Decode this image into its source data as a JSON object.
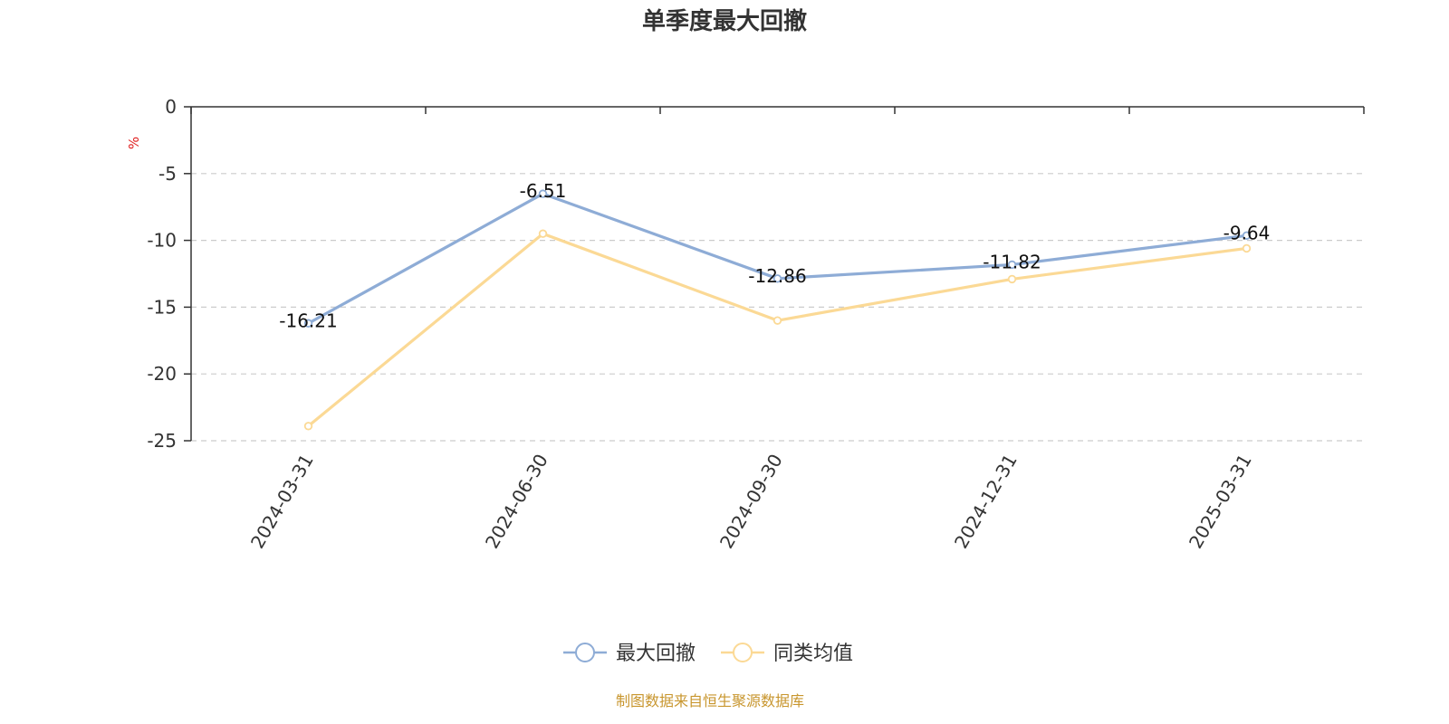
{
  "chart_data": {
    "type": "line",
    "title": "单季度最大回撤",
    "ylabel": "%",
    "xlabel": "",
    "categories": [
      "2024-03-31",
      "2024-06-30",
      "2024-09-30",
      "2024-12-31",
      "2025-03-31"
    ],
    "y_ticks": [
      "0",
      "-5",
      "-10",
      "-15",
      "-20",
      "-25"
    ],
    "y_tick_values": [
      0,
      -5,
      -10,
      -15,
      -20,
      -25
    ],
    "ylim": [
      -25,
      0
    ],
    "grid": true,
    "legend_position": "bottom",
    "series": [
      {
        "name": "最大回撤",
        "values": [
          -16.21,
          -6.51,
          -12.86,
          -11.82,
          -9.64
        ],
        "value_labels": [
          "-16.21",
          "-6.51",
          "-12.86",
          "-11.82",
          "-9.64"
        ],
        "color": "#8eacd6"
      },
      {
        "name": "同类均值",
        "values": [
          -23.9,
          -9.5,
          -16.0,
          -12.9,
          -10.6
        ],
        "color": "#fbd995"
      }
    ],
    "source": "制图数据来自恒生聚源数据库",
    "colors": {
      "title": "#333333",
      "axis": "#333333",
      "grid": "#cccccc",
      "unit": "#e02020",
      "source": "#c8962e"
    }
  }
}
